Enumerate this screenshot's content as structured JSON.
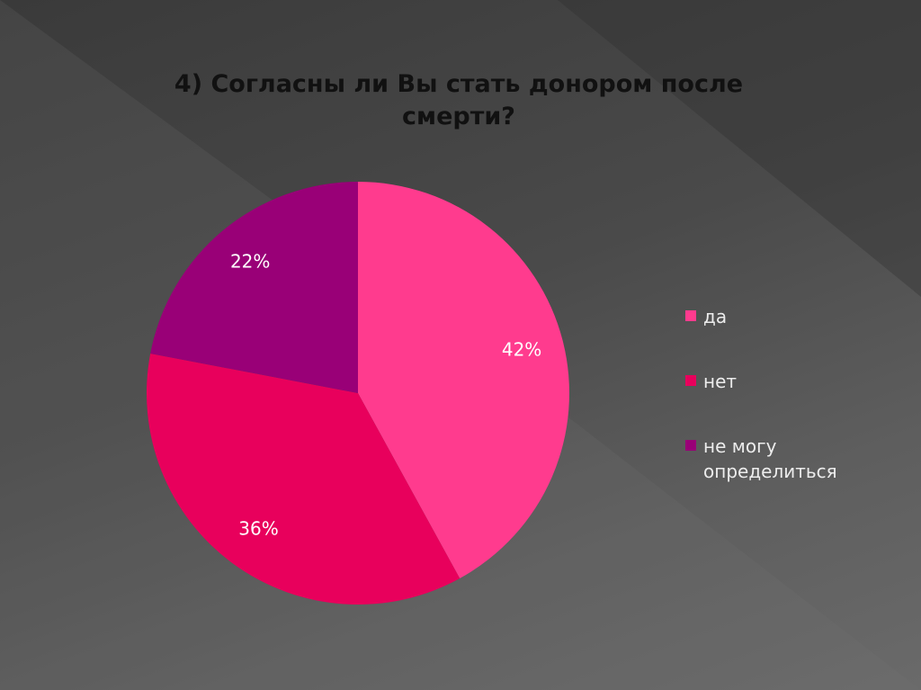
{
  "slide": {
    "title": "4) Согласны ли Вы стать донором после смерти?"
  },
  "chart_data": {
    "type": "pie",
    "title": "4) Согласны ли Вы стать донором после смерти?",
    "categories": [
      "да",
      "нет",
      "не могу определиться"
    ],
    "values": [
      42,
      36,
      22
    ],
    "labels": [
      "42%",
      "36%",
      "22%"
    ],
    "colors": [
      "#ff3b8e",
      "#e8005c",
      "#990077"
    ],
    "legend_position": "right"
  },
  "legend": {
    "items": [
      {
        "label": "да",
        "color": "#ff3b8e"
      },
      {
        "label": "нет",
        "color": "#e8005c"
      },
      {
        "label": "не могу определиться",
        "color": "#990077"
      }
    ]
  }
}
